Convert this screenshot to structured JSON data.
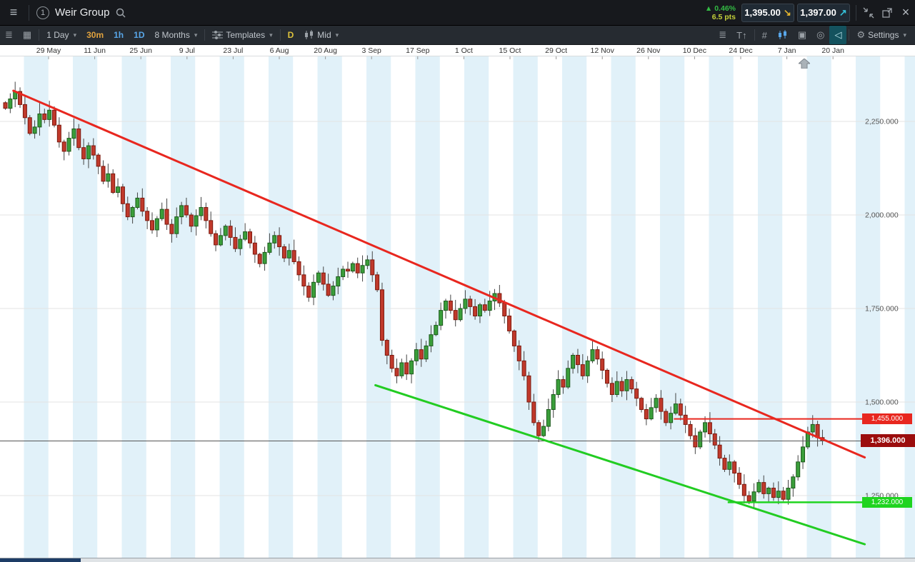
{
  "icons": {
    "hamburger": "≡",
    "list": "≣",
    "grid": "▦",
    "caret": "▾",
    "text_tool": "T↑",
    "hash": "#",
    "layers": "▣",
    "magnet": "◎",
    "back": "◁",
    "gear": "⚙",
    "close": "×",
    "up_arrow": "▲",
    "sell_arrow": "↘",
    "buy_arrow": "↗"
  },
  "header": {
    "instrument_number": "1",
    "title": "Weir Group",
    "change_pct": "0.46%",
    "change_pts": "6.5 pts",
    "sell_price": "1,395.00",
    "buy_price": "1,397.00"
  },
  "toolbar": {
    "period": "1 Day",
    "tf_30m": "30m",
    "tf_1h": "1h",
    "tf_1d": "1D",
    "range": "8 Months",
    "templates": "Templates",
    "d_label": "D",
    "mid_label": "Mid",
    "settings": "Settings"
  },
  "chart_data": {
    "type": "candlestick",
    "title": "Weir Group — 1 Day candles, 8 Months",
    "x_ticks": [
      "29 May",
      "11 Jun",
      "25 Jun",
      "9 Jul",
      "23 Jul",
      "6 Aug",
      "20 Aug",
      "3 Sep",
      "17 Sep",
      "1 Oct",
      "15 Oct",
      "29 Oct",
      "12 Nov",
      "26 Nov",
      "10 Dec",
      "24 Dec",
      "7 Jan",
      "20 Jan"
    ],
    "y_ticks": [
      "2,250.000",
      "2,000.000",
      "1,750.000",
      "1,500.000",
      "1,250.000"
    ],
    "y_tick_values": [
      2250,
      2000,
      1750,
      1500,
      1250
    ],
    "ylim": [
      1080,
      2430
    ],
    "closes": [
      2285,
      2310,
      2330,
      2295,
      2260,
      2218,
      2235,
      2270,
      2255,
      2280,
      2240,
      2195,
      2170,
      2205,
      2230,
      2180,
      2150,
      2185,
      2160,
      2130,
      2090,
      2110,
      2060,
      2075,
      2030,
      1995,
      2020,
      2045,
      2010,
      1985,
      1960,
      1990,
      2015,
      1975,
      1950,
      1995,
      2025,
      2000,
      1970,
      1998,
      2020,
      1985,
      1950,
      1920,
      1945,
      1970,
      1940,
      1910,
      1935,
      1955,
      1925,
      1895,
      1870,
      1900,
      1925,
      1945,
      1915,
      1885,
      1905,
      1875,
      1840,
      1810,
      1780,
      1820,
      1845,
      1815,
      1785,
      1810,
      1835,
      1855,
      1850,
      1870,
      1845,
      1865,
      1880,
      1840,
      1800,
      1665,
      1625,
      1590,
      1570,
      1605,
      1575,
      1610,
      1640,
      1615,
      1650,
      1680,
      1705,
      1745,
      1770,
      1745,
      1720,
      1750,
      1775,
      1755,
      1730,
      1760,
      1745,
      1770,
      1790,
      1765,
      1730,
      1690,
      1650,
      1610,
      1570,
      1500,
      1445,
      1410,
      1435,
      1480,
      1520,
      1560,
      1540,
      1590,
      1625,
      1600,
      1570,
      1610,
      1640,
      1615,
      1585,
      1550,
      1520,
      1555,
      1530,
      1560,
      1535,
      1510,
      1480,
      1455,
      1485,
      1510,
      1475,
      1445,
      1470,
      1495,
      1465,
      1440,
      1410,
      1380,
      1420,
      1445,
      1415,
      1385,
      1350,
      1320,
      1340,
      1310,
      1280,
      1250,
      1235,
      1260,
      1285,
      1255,
      1270,
      1245,
      1262,
      1240,
      1270,
      1300,
      1340,
      1380,
      1420,
      1440,
      1405,
      1396
    ],
    "annotations": {
      "down_trendline": {
        "color": "#e8271f",
        "from_day": 2,
        "from_price": 2332,
        "to_day": 176,
        "to_price": 1352
      },
      "support_trendline": {
        "color": "#22cc22",
        "from_day": 76,
        "from_price": 1545,
        "to_day": 176,
        "to_price": 1120
      },
      "resistance_line": {
        "price": 1455,
        "label": "1,455.000",
        "color": "#e8271f",
        "from_day": 137
      },
      "support_line": {
        "price": 1232,
        "label": "1,232.000",
        "color": "#1fd41f",
        "from_day": 148
      },
      "current_price": {
        "price": 1396,
        "label": "1,396.000",
        "color": "#9b0d0d"
      }
    },
    "colors": {
      "up": "#3a9e3a",
      "up_border": "#1c5a1c",
      "down": "#c0392b",
      "down_border": "#7c190e",
      "band": "#e1f1f9",
      "grid": "#e3e3e3"
    },
    "legend": "none",
    "grid": "horizontal"
  }
}
